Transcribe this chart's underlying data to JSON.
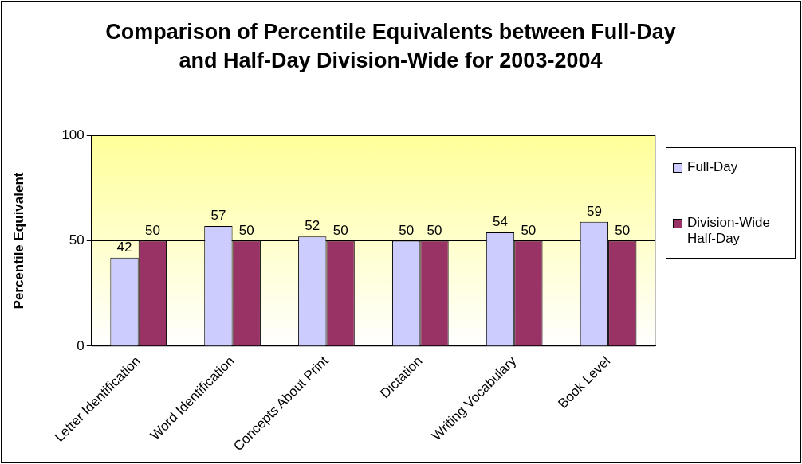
{
  "chart_data": {
    "type": "bar",
    "title": "Comparison of Percentile Equivalents between Full-Day and Half-Day Division-Wide for 2003-2004",
    "ylabel": "Percentile Equivalent",
    "categories": [
      "Letter Identification",
      "Word Identification",
      "Concepts About Print",
      "Dictation",
      "Writing Vocabulary",
      "Book Level"
    ],
    "series": [
      {
        "name": "Full-Day",
        "color": "#ccccff",
        "values": [
          42,
          57,
          52,
          50,
          54,
          59
        ]
      },
      {
        "name": "Division-Wide Half-Day",
        "color": "#993366",
        "values": [
          50,
          50,
          50,
          50,
          50,
          50
        ]
      }
    ],
    "ylim": [
      0,
      100
    ],
    "yticks": [
      0,
      50,
      100
    ],
    "grid": "y",
    "legend": "right",
    "data_labels": true
  }
}
